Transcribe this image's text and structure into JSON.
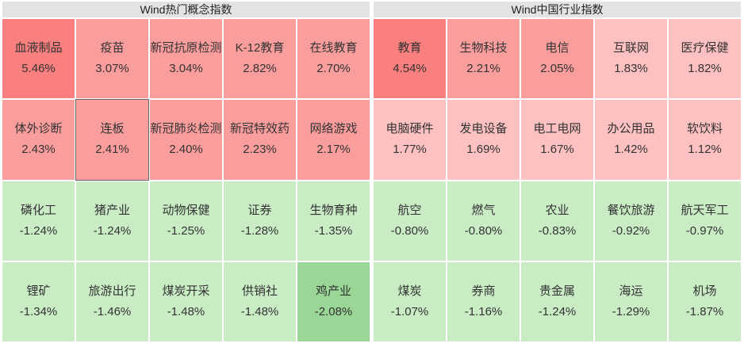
{
  "palette": {
    "strong_up": "#f9807f",
    "up": "#fa9e9d",
    "weak_up": "#fcc1c0",
    "weak_down": "#c9ecc5",
    "strong_down": "#9ad695",
    "header_bg": "#e3e3e3",
    "selected_border": "#666666",
    "text": "#333333"
  },
  "chart_data": [
    {
      "type": "heatmap",
      "title": "Wind热门概念指数",
      "columns": 5,
      "rows": 4,
      "cells": [
        {
          "name": "血液制品",
          "change": "5.46%",
          "value": 5.46
        },
        {
          "name": "疫苗",
          "change": "3.07%",
          "value": 3.07
        },
        {
          "name": "新冠抗原检测",
          "change": "3.04%",
          "value": 3.04
        },
        {
          "name": "K-12教育",
          "change": "2.82%",
          "value": 2.82
        },
        {
          "name": "在线教育",
          "change": "2.70%",
          "value": 2.7
        },
        {
          "name": "体外诊断",
          "change": "2.43%",
          "value": 2.43
        },
        {
          "name": "连板",
          "change": "2.41%",
          "value": 2.41,
          "selected": true
        },
        {
          "name": "新冠肺炎检测",
          "change": "2.40%",
          "value": 2.4
        },
        {
          "name": "新冠特效药",
          "change": "2.23%",
          "value": 2.23
        },
        {
          "name": "网络游戏",
          "change": "2.17%",
          "value": 2.17
        },
        {
          "name": "磷化工",
          "change": "-1.24%",
          "value": -1.24
        },
        {
          "name": "猪产业",
          "change": "-1.24%",
          "value": -1.24
        },
        {
          "name": "动物保健",
          "change": "-1.25%",
          "value": -1.25
        },
        {
          "name": "证券",
          "change": "-1.28%",
          "value": -1.28
        },
        {
          "name": "生物育种",
          "change": "-1.35%",
          "value": -1.35
        },
        {
          "name": "锂矿",
          "change": "-1.34%",
          "value": -1.34
        },
        {
          "name": "旅游出行",
          "change": "-1.46%",
          "value": -1.46
        },
        {
          "name": "煤炭开采",
          "change": "-1.48%",
          "value": -1.48
        },
        {
          "name": "供销社",
          "change": "-1.48%",
          "value": -1.48
        },
        {
          "name": "鸡产业",
          "change": "-2.08%",
          "value": -2.08
        }
      ]
    },
    {
      "type": "heatmap",
      "title": "Wind中国行业指数",
      "columns": 5,
      "rows": 4,
      "cells": [
        {
          "name": "教育",
          "change": "4.54%",
          "value": 4.54
        },
        {
          "name": "生物科技",
          "change": "2.21%",
          "value": 2.21
        },
        {
          "name": "电信",
          "change": "2.05%",
          "value": 2.05
        },
        {
          "name": "互联网",
          "change": "1.83%",
          "value": 1.83
        },
        {
          "name": "医疗保健",
          "change": "1.82%",
          "value": 1.82
        },
        {
          "name": "电脑硬件",
          "change": "1.77%",
          "value": 1.77
        },
        {
          "name": "发电设备",
          "change": "1.69%",
          "value": 1.69
        },
        {
          "name": "电工电网",
          "change": "1.67%",
          "value": 1.67
        },
        {
          "name": "办公用品",
          "change": "1.42%",
          "value": 1.42
        },
        {
          "name": "软饮料",
          "change": "1.12%",
          "value": 1.12
        },
        {
          "name": "航空",
          "change": "-0.80%",
          "value": -0.8
        },
        {
          "name": "燃气",
          "change": "-0.80%",
          "value": -0.8
        },
        {
          "name": "农业",
          "change": "-0.83%",
          "value": -0.83
        },
        {
          "name": "餐饮旅游",
          "change": "-0.92%",
          "value": -0.92
        },
        {
          "name": "航天军工",
          "change": "-0.97%",
          "value": -0.97
        },
        {
          "name": "煤炭",
          "change": "-1.07%",
          "value": -1.07
        },
        {
          "name": "券商",
          "change": "-1.16%",
          "value": -1.16
        },
        {
          "name": "贵金属",
          "change": "-1.24%",
          "value": -1.24
        },
        {
          "name": "海运",
          "change": "-1.29%",
          "value": -1.29
        },
        {
          "name": "机场",
          "change": "-1.87%",
          "value": -1.87
        }
      ]
    }
  ]
}
